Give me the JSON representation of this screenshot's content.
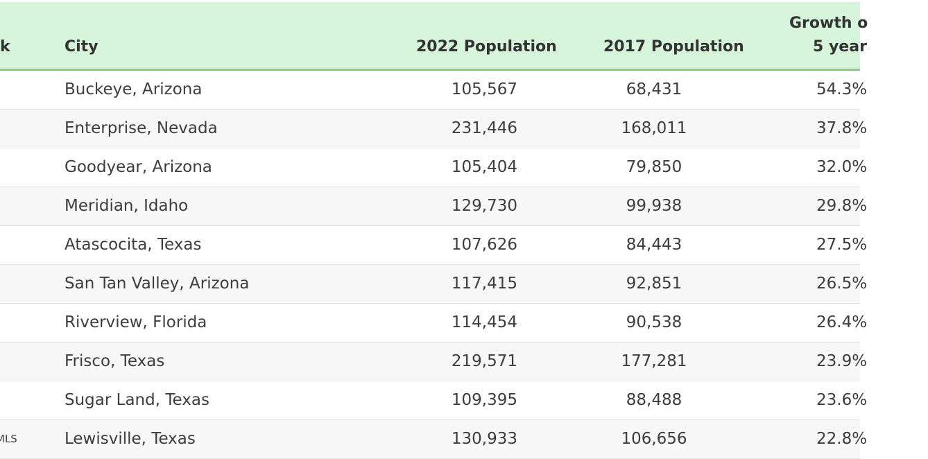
{
  "table": {
    "headers": {
      "rank": "k",
      "city": "City",
      "pop_2022": "2022 Population",
      "pop_2017": "2017 Population",
      "growth_line1": "Growth o",
      "growth_line2": "5 year"
    },
    "rows": [
      {
        "rank": "",
        "city": "Buckeye, Arizona",
        "pop_2022": "105,567",
        "pop_2017": "68,431",
        "growth": "54.3%"
      },
      {
        "rank": "",
        "city": "Enterprise, Nevada",
        "pop_2022": "231,446",
        "pop_2017": "168,011",
        "growth": "37.8%"
      },
      {
        "rank": "",
        "city": "Goodyear, Arizona",
        "pop_2022": "105,404",
        "pop_2017": "79,850",
        "growth": "32.0%"
      },
      {
        "rank": "",
        "city": "Meridian, Idaho",
        "pop_2022": "129,730",
        "pop_2017": "99,938",
        "growth": "29.8%"
      },
      {
        "rank": "",
        "city": "Atascocita, Texas",
        "pop_2022": "107,626",
        "pop_2017": "84,443",
        "growth": "27.5%"
      },
      {
        "rank": "",
        "city": "San Tan Valley, Arizona",
        "pop_2022": "117,415",
        "pop_2017": "92,851",
        "growth": "26.5%"
      },
      {
        "rank": "",
        "city": "Riverview, Florida",
        "pop_2022": "114,454",
        "pop_2017": "90,538",
        "growth": "26.4%"
      },
      {
        "rank": "",
        "city": "Frisco, Texas",
        "pop_2022": "219,571",
        "pop_2017": "177,281",
        "growth": "23.9%"
      },
      {
        "rank": "",
        "city": "Sugar Land, Texas",
        "pop_2022": "109,395",
        "pop_2017": "88,488",
        "growth": "23.6%"
      },
      {
        "rank": "MLS",
        "city": "Lewisville, Texas",
        "pop_2022": "130,933",
        "pop_2017": "106,656",
        "growth": "22.8%"
      }
    ]
  },
  "colors": {
    "header_bg": "#d6f5da",
    "header_border": "#7bcf73",
    "row_alt_bg": "#f7f7f7"
  }
}
